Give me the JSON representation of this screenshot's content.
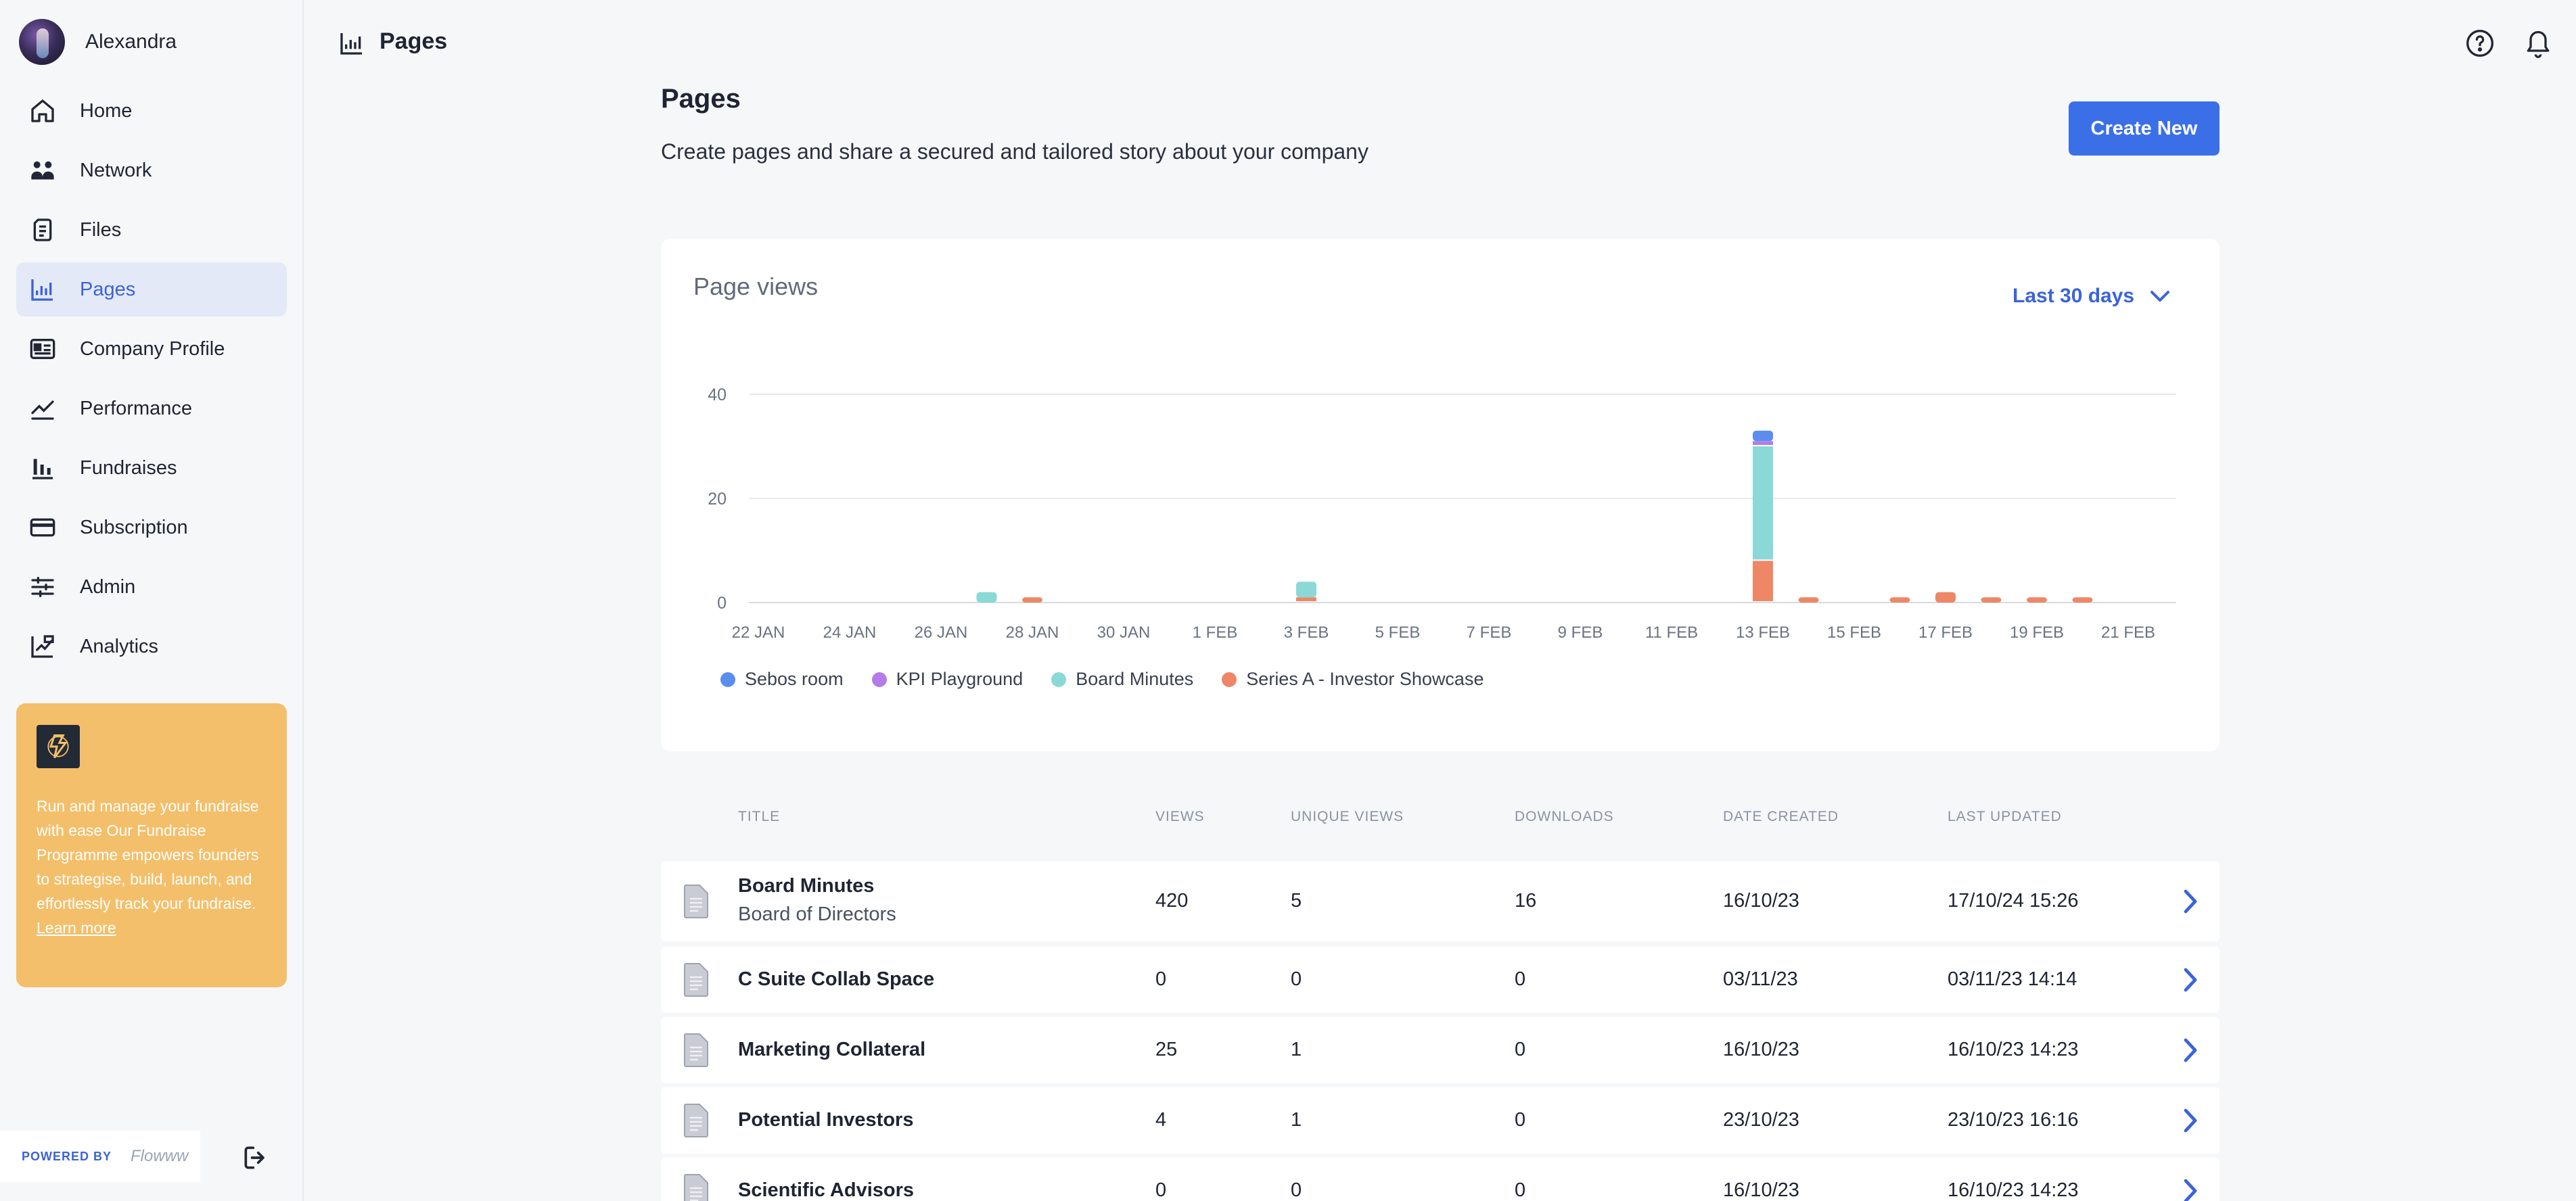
{
  "user": {
    "name": "Alexandra"
  },
  "nav": [
    {
      "label": "Home",
      "icon": "home-icon",
      "active": false
    },
    {
      "label": "Network",
      "icon": "network-icon",
      "active": false
    },
    {
      "label": "Files",
      "icon": "files-icon",
      "active": false
    },
    {
      "label": "Pages",
      "icon": "pages-icon",
      "active": true
    },
    {
      "label": "Company Profile",
      "icon": "company-profile-icon",
      "active": false
    },
    {
      "label": "Performance",
      "icon": "performance-icon",
      "active": false
    },
    {
      "label": "Fundraises",
      "icon": "fundraises-icon",
      "active": false
    },
    {
      "label": "Subscription",
      "icon": "subscription-icon",
      "active": false
    },
    {
      "label": "Admin",
      "icon": "admin-icon",
      "active": false
    },
    {
      "label": "Analytics",
      "icon": "analytics-icon",
      "active": false
    }
  ],
  "promo": {
    "text": "Run and manage your fundraise with ease Our Fundraise Programme empowers founders to strategise, build, launch, and effortlessly track your fundraise.",
    "link": "Learn more"
  },
  "footer": {
    "powered_by": "POWERED BY",
    "brand": "Flowww"
  },
  "topbar": {
    "title": "Pages"
  },
  "header": {
    "title": "Pages",
    "subtitle": "Create pages and share a secured and tailored story about your company",
    "create_label": "Create New"
  },
  "chart_card": {
    "title": "Page views",
    "range_label": "Last 30 days"
  },
  "chart_data": {
    "type": "bar",
    "stacked": true,
    "categories": [
      "22 JAN",
      "23 JAN",
      "24 JAN",
      "25 JAN",
      "26 JAN",
      "27 JAN",
      "28 JAN",
      "29 JAN",
      "30 JAN",
      "31 JAN",
      "1 FEB",
      "2 FEB",
      "3 FEB",
      "4 FEB",
      "5 FEB",
      "6 FEB",
      "7 FEB",
      "8 FEB",
      "9 FEB",
      "10 FEB",
      "11 FEB",
      "12 FEB",
      "13 FEB",
      "14 FEB",
      "15 FEB",
      "16 FEB",
      "17 FEB",
      "18 FEB",
      "19 FEB",
      "20 FEB",
      "21 FEB",
      "22 FEB"
    ],
    "tick_labels": [
      "22 JAN",
      "24 JAN",
      "26 JAN",
      "28 JAN",
      "30 JAN",
      "1 FEB",
      "3 FEB",
      "5 FEB",
      "7 FEB",
      "9 FEB",
      "11 FEB",
      "13 FEB",
      "15 FEB",
      "17 FEB",
      "19 FEB",
      "21 FEB"
    ],
    "series": [
      {
        "name": "Series A - Investor Showcase",
        "color": "#ed8766",
        "values": [
          0,
          0,
          0,
          0,
          0,
          0,
          1,
          0,
          0,
          0,
          0,
          0,
          1,
          0,
          0,
          0,
          0,
          0,
          0,
          0,
          0,
          0,
          8,
          1,
          0,
          1,
          2,
          1,
          1,
          1,
          0,
          0
        ]
      },
      {
        "name": "Board Minutes",
        "color": "#8ad9d6",
        "values": [
          0,
          0,
          0,
          0,
          0,
          2,
          0,
          0,
          0,
          0,
          0,
          0,
          3,
          0,
          0,
          0,
          0,
          0,
          0,
          0,
          0,
          0,
          22,
          0,
          0,
          0,
          0,
          0,
          0,
          0,
          0,
          0
        ]
      },
      {
        "name": "KPI Playground",
        "color": "#b57be6",
        "values": [
          0,
          0,
          0,
          0,
          0,
          0,
          0,
          0,
          0,
          0,
          0,
          0,
          0,
          0,
          0,
          0,
          0,
          0,
          0,
          0,
          0,
          0,
          1,
          0,
          0,
          0,
          0,
          0,
          0,
          0,
          0,
          0
        ]
      },
      {
        "name": "Sebos room",
        "color": "#5b8def",
        "values": [
          0,
          0,
          0,
          0,
          0,
          0,
          0,
          0,
          0,
          0,
          0,
          0,
          0,
          0,
          0,
          0,
          0,
          0,
          0,
          0,
          0,
          0,
          2,
          0,
          0,
          0,
          0,
          0,
          0,
          0,
          0,
          0
        ]
      }
    ],
    "legend_order": [
      "Sebos room",
      "KPI Playground",
      "Board Minutes",
      "Series A - Investor Showcase"
    ],
    "yticks": [
      0,
      20,
      40
    ],
    "ylim": [
      0,
      40
    ],
    "legend_position": "bottom-left",
    "grid": true
  },
  "table": {
    "headers": {
      "title": "TITLE",
      "views": "VIEWS",
      "unique": "UNIQUE VIEWS",
      "downloads": "DOWNLOADS",
      "created": "DATE CREATED",
      "updated": "LAST UPDATED"
    },
    "rows": [
      {
        "title": "Board Minutes",
        "subtitle": "Board of Directors",
        "views": "420",
        "unique": "5",
        "downloads": "16",
        "created": "16/10/23",
        "updated": "17/10/24 15:26"
      },
      {
        "title": "C Suite Collab Space",
        "subtitle": "",
        "views": "0",
        "unique": "0",
        "downloads": "0",
        "created": "03/11/23",
        "updated": "03/11/23 14:14"
      },
      {
        "title": "Marketing Collateral",
        "subtitle": "",
        "views": "25",
        "unique": "1",
        "downloads": "0",
        "created": "16/10/23",
        "updated": "16/10/23 14:23"
      },
      {
        "title": "Potential Investors",
        "subtitle": "",
        "views": "4",
        "unique": "1",
        "downloads": "0",
        "created": "23/10/23",
        "updated": "23/10/23 16:16"
      },
      {
        "title": "Scientific Advisors",
        "subtitle": "",
        "views": "0",
        "unique": "0",
        "downloads": "0",
        "created": "16/10/23",
        "updated": "16/10/23 14:23"
      }
    ]
  }
}
